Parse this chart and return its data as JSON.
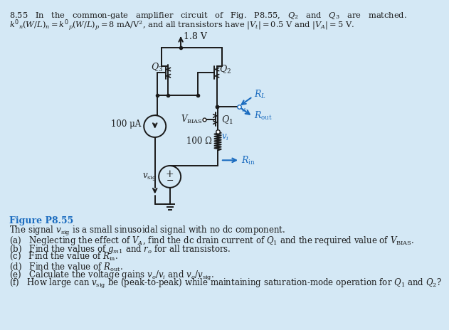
{
  "bg_color": "#d4e8f5",
  "circuit_color": "#1a1a1a",
  "blue_color": "#1a6bbf",
  "vdd_text": "1.8 V",
  "current_label": "100 μA",
  "resistor_label": "100 Ω",
  "fig_label": "Figure P8.55",
  "caption": "The signal $v_{\\rm sig}$ is a small sinusoidal signal with no dc component.",
  "q_a": "(a)\\quad Neglecting the effect of $V_A$, find the dc drain current of $Q_1$ and the required value of $V_{\\rm BIAS}$.",
  "q_b": "(b)\\quad Find the values of $g_{m1}$ and $r_o$ for all transistors.",
  "q_c": "(c)\\quad Find the value of $R_{\\rm in}$.",
  "q_d": "(d)\\quad Find the value of $R_{\\rm out}$.",
  "q_e": "(e)\\quad Calculate the voltage gains $v_o/v_i$ and $v_o/v_{\\rm sig}$.",
  "q_f": "(f)\\quad How large can $v_{\\rm sig}$ be (peak-to-peak) while maintaining saturation-mode operation for $Q_1$ and $Q_2$?"
}
